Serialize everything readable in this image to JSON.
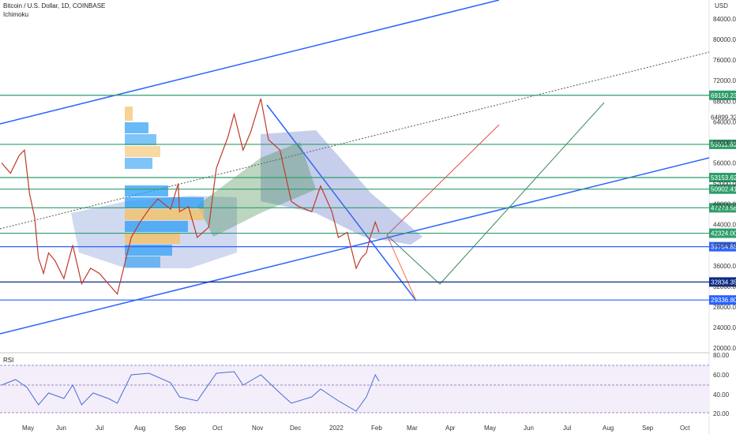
{
  "header": {
    "symbol": "Bitcoin / U.S. Dollar, 1D, COINBASE",
    "indicator": "Ichimoku",
    "currency": "USD"
  },
  "rsi": {
    "label": "RSI",
    "ticks": [
      "80.00",
      "60.00",
      "40.00",
      "20.00"
    ]
  },
  "chart_data": {
    "type": "line",
    "x_ticks": [
      "May",
      "Jun",
      "Jul",
      "Aug",
      "Sep",
      "Oct",
      "Nov",
      "Dec",
      "2022",
      "Feb",
      "Mar",
      "Apr",
      "May",
      "Jun",
      "Jul",
      "Aug",
      "Sep",
      "Oct"
    ],
    "y_ticks": [
      "84000.00",
      "80000.00",
      "76000.00",
      "72000.00",
      "68000.00",
      "64000.00",
      "60000.00",
      "56000.00",
      "52000.00",
      "48000.00",
      "44000.00",
      "40000.00",
      "36000.00",
      "32000.00",
      "28000.00",
      "24000.00",
      "20000.00"
    ],
    "ylim": [
      20000,
      86000
    ],
    "price_levels": [
      {
        "value": "69150.23",
        "color": "#2e9e6a"
      },
      {
        "value": "64899.32",
        "color": ""
      },
      {
        "value": "59611.60",
        "color": "#2e9e6a"
      },
      {
        "value": "53153.62",
        "color": "#2e9e6a"
      },
      {
        "value": "50902.41",
        "color": "#2e9e6a"
      },
      {
        "value": "47273.58",
        "color": "#2e9e6a"
      },
      {
        "value": "42324.00",
        "color": "#2e9e6a"
      },
      {
        "value": "39704.88",
        "color": "#2962ff"
      },
      {
        "value": "32834.35",
        "color": "#0b2a8a"
      },
      {
        "value": "29336.80",
        "color": "#2962ff"
      }
    ],
    "price": [
      [
        "2021-04-20",
        56000
      ],
      [
        "2021-04-27",
        54000
      ],
      [
        "2021-05-04",
        57500
      ],
      [
        "2021-05-08",
        58500
      ],
      [
        "2021-05-12",
        50000
      ],
      [
        "2021-05-16",
        45500
      ],
      [
        "2021-05-19",
        37500
      ],
      [
        "2021-05-23",
        34500
      ],
      [
        "2021-05-27",
        38500
      ],
      [
        "2021-06-01",
        37000
      ],
      [
        "2021-06-08",
        33500
      ],
      [
        "2021-06-15",
        40000
      ],
      [
        "2021-06-22",
        32500
      ],
      [
        "2021-06-29",
        35500
      ],
      [
        "2021-07-06",
        34500
      ],
      [
        "2021-07-13",
        32500
      ],
      [
        "2021-07-20",
        30500
      ],
      [
        "2021-07-25",
        35500
      ],
      [
        "2021-07-31",
        41500
      ],
      [
        "2021-08-07",
        44500
      ],
      [
        "2021-08-14",
        47000
      ],
      [
        "2021-08-21",
        49000
      ],
      [
        "2021-08-31",
        47000
      ],
      [
        "2021-09-06",
        52000
      ],
      [
        "2021-09-07",
        46500
      ],
      [
        "2021-09-14",
        47500
      ],
      [
        "2021-09-21",
        41500
      ],
      [
        "2021-09-30",
        43500
      ],
      [
        "2021-10-06",
        55000
      ],
      [
        "2021-10-15",
        61000
      ],
      [
        "2021-10-20",
        65500
      ],
      [
        "2021-10-27",
        58500
      ],
      [
        "2021-11-02",
        62000
      ],
      [
        "2021-11-10",
        68500
      ],
      [
        "2021-11-16",
        60500
      ],
      [
        "2021-11-25",
        58500
      ],
      [
        "2021-12-04",
        48500
      ],
      [
        "2021-12-10",
        47500
      ],
      [
        "2021-12-20",
        46500
      ],
      [
        "2021-12-27",
        51500
      ],
      [
        "2022-01-05",
        46500
      ],
      [
        "2022-01-10",
        41500
      ],
      [
        "2022-01-17",
        42500
      ],
      [
        "2022-01-24",
        35500
      ],
      [
        "2022-01-28",
        37500
      ],
      [
        "2022-02-01",
        38500
      ],
      [
        "2022-02-04",
        41500
      ],
      [
        "2022-02-08",
        44500
      ],
      [
        "2022-02-11",
        42500
      ]
    ],
    "rsi": [
      [
        "2021-04-20",
        55
      ],
      [
        "2021-05-01",
        62
      ],
      [
        "2021-05-10",
        52
      ],
      [
        "2021-05-19",
        30
      ],
      [
        "2021-05-27",
        45
      ],
      [
        "2021-06-08",
        38
      ],
      [
        "2021-06-15",
        55
      ],
      [
        "2021-06-22",
        30
      ],
      [
        "2021-07-01",
        45
      ],
      [
        "2021-07-13",
        38
      ],
      [
        "2021-07-20",
        32
      ],
      [
        "2021-07-31",
        68
      ],
      [
        "2021-08-14",
        70
      ],
      [
        "2021-08-31",
        58
      ],
      [
        "2021-09-07",
        40
      ],
      [
        "2021-09-21",
        35
      ],
      [
        "2021-10-06",
        70
      ],
      [
        "2021-10-20",
        72
      ],
      [
        "2021-10-27",
        55
      ],
      [
        "2021-11-10",
        68
      ],
      [
        "2021-11-25",
        45
      ],
      [
        "2021-12-04",
        32
      ],
      [
        "2021-12-20",
        40
      ],
      [
        "2021-12-27",
        50
      ],
      [
        "2022-01-10",
        35
      ],
      [
        "2022-01-24",
        22
      ],
      [
        "2022-02-01",
        40
      ],
      [
        "2022-02-08",
        68
      ],
      [
        "2022-02-11",
        60
      ]
    ],
    "rsi_ylim": [
      15,
      90
    ]
  }
}
